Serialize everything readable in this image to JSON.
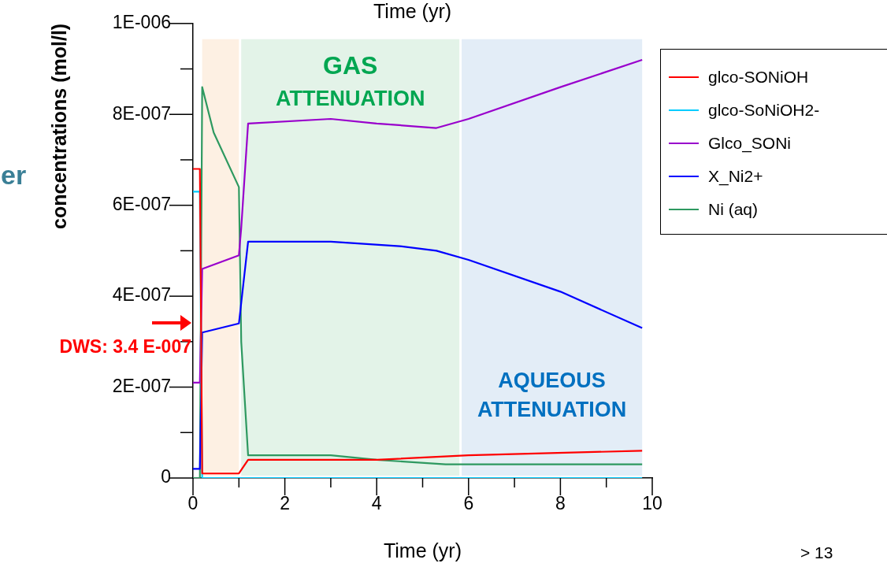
{
  "chart_data": {
    "type": "line",
    "xlabel": "Time (yr)",
    "ylabel": "concentrations (mol/l)",
    "xlim": [
      0,
      10
    ],
    "xticks": [
      0,
      {
        "value": 1,
        "label": null
      },
      2,
      {
        "value": 3,
        "label": null
      },
      4,
      {
        "value": 5,
        "label": null
      },
      6,
      {
        "value": 7,
        "label": null
      },
      8,
      {
        "value": 9,
        "label": null
      },
      10
    ],
    "ylim": [
      0,
      1e-06
    ],
    "yticks": [
      0,
      {
        "value": 1e-07,
        "label": null
      },
      {
        "value": 2e-07,
        "label": "2E-007"
      },
      {
        "value": 3e-07,
        "label": null
      },
      {
        "value": 4e-07,
        "label": "4E-007"
      },
      {
        "value": 5e-07,
        "label": null
      },
      {
        "value": 6e-07,
        "label": "6E-007"
      },
      {
        "value": 7e-07,
        "label": null
      },
      {
        "value": 8e-07,
        "label": "8E-007"
      },
      {
        "value": 9e-07,
        "label": null
      },
      {
        "value": 1e-06,
        "label": "1E-006"
      }
    ],
    "grid": false,
    "legend": "top right",
    "marker": "none",
    "line_style": "solid",
    "bands": [
      {
        "axis": "x",
        "from": 0.2,
        "to": 1.0,
        "label": null,
        "color": "#fdf0e3"
      },
      {
        "axis": "x",
        "from": 1.05,
        "to": 5.8,
        "label": "GAS\nATTENUATION",
        "color": "#e3f3e8"
      },
      {
        "axis": "x",
        "from": 5.85,
        "to": 9.78,
        "label": "AQUEOUS\nATTENUATION",
        "color": "#e3edf7"
      }
    ],
    "series": [
      {
        "name": "glco-SONiOH",
        "color": "#ff0000",
        "x": [
          0,
          0.15,
          0.2,
          1.0,
          1.2,
          4,
          6,
          9.78
        ],
        "values": [
          6.8e-07,
          6.8e-07,
          1e-08,
          1e-08,
          4e-08,
          4e-08,
          5e-08,
          6e-08
        ]
      },
      {
        "name": "glco-SoNiOH2-",
        "color": "#00ccff",
        "x": [
          0,
          0.15,
          0.2,
          9.78
        ],
        "values": [
          6.3e-07,
          6.3e-07,
          0,
          0
        ]
      },
      {
        "name": "Glco_SONi",
        "color": "#9900cc",
        "x": [
          0,
          0.15,
          0.2,
          1.0,
          1.05,
          1.2,
          3,
          4,
          5.3,
          6,
          8,
          9.78
        ],
        "values": [
          2.1e-07,
          2.1e-07,
          4.6e-07,
          4.9e-07,
          5.5e-07,
          7.8e-07,
          7.9e-07,
          7.8e-07,
          7.7e-07,
          7.9e-07,
          8.6e-07,
          9.2e-07
        ]
      },
      {
        "name": "X_Ni2+",
        "color": "#0000ff",
        "x": [
          0,
          0.15,
          0.2,
          1.0,
          1.2,
          3,
          4.5,
          5.3,
          6,
          8,
          9.78
        ],
        "values": [
          2e-08,
          2e-08,
          3.2e-07,
          3.4e-07,
          5.2e-07,
          5.2e-07,
          5.1e-07,
          5e-07,
          4.8e-07,
          4.1e-07,
          3.3e-07
        ]
      },
      {
        "name": "Ni (aq)",
        "color": "#2e9960",
        "x": [
          0,
          0.15,
          0.2,
          0.45,
          1.0,
          1.05,
          1.2,
          3,
          4,
          5.5,
          9.78
        ],
        "values": [
          0,
          0,
          8.6e-07,
          7.6e-07,
          6.4e-07,
          3e-07,
          5e-08,
          5e-08,
          4e-08,
          3e-08,
          3e-08
        ]
      }
    ],
    "annotations": [
      "DWS: 3.4 E-007",
      "Time (yr)",
      "er",
      "> 13"
    ]
  }
}
